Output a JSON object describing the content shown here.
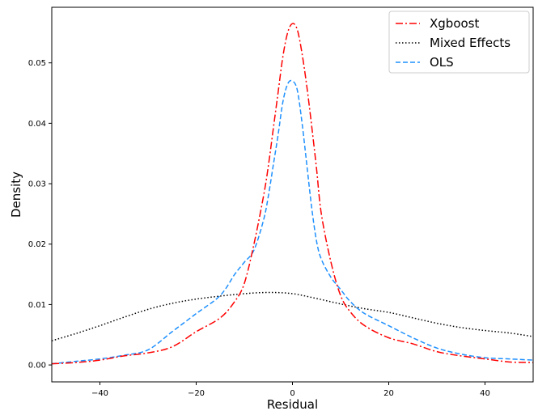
{
  "chart_data": {
    "type": "line",
    "title": "",
    "xlabel": "Residual",
    "ylabel": "Density",
    "xlim": [
      -50,
      50
    ],
    "ylim": [
      -0.0028,
      0.0592
    ],
    "x_ticks": [
      -40,
      -20,
      0,
      20,
      40
    ],
    "x_tick_labels": [
      "−40",
      "−20",
      "0",
      "20",
      "40"
    ],
    "y_ticks": [
      0.0,
      0.01,
      0.02,
      0.03,
      0.04,
      0.05
    ],
    "y_tick_labels": [
      "0.00",
      "0.01",
      "0.02",
      "0.03",
      "0.04",
      "0.05"
    ],
    "grid": false,
    "legend_position": "top-right",
    "series": [
      {
        "name": "Xgboost",
        "color": "#ff0000",
        "dash": "dashdot",
        "x": [
          -50,
          -45,
          -40,
          -35,
          -30,
          -25,
          -20,
          -15,
          -12,
          -10,
          -8,
          -6,
          -5,
          -4,
          -3,
          -2,
          -1,
          0,
          1,
          2,
          3,
          4,
          5,
          6,
          8,
          10,
          12,
          15,
          20,
          25,
          30,
          35,
          40,
          45,
          50
        ],
        "y": [
          0.0002,
          0.0004,
          0.0008,
          0.0015,
          0.002,
          0.003,
          0.0055,
          0.0078,
          0.0105,
          0.0135,
          0.02,
          0.028,
          0.033,
          0.039,
          0.045,
          0.051,
          0.055,
          0.0565,
          0.0555,
          0.0515,
          0.046,
          0.0395,
          0.0325,
          0.025,
          0.017,
          0.0115,
          0.0088,
          0.0065,
          0.0045,
          0.0035,
          0.0022,
          0.0015,
          0.001,
          0.0005,
          0.0004
        ]
      },
      {
        "name": "Mixed Effects",
        "color": "#000000",
        "dash": "dotted",
        "x": [
          -50,
          -45,
          -40,
          -35,
          -30,
          -25,
          -20,
          -15,
          -10,
          -5,
          0,
          5,
          10,
          15,
          20,
          25,
          30,
          35,
          40,
          45,
          50
        ],
        "y": [
          0.004,
          0.0052,
          0.0065,
          0.0079,
          0.0092,
          0.0102,
          0.0109,
          0.0114,
          0.0118,
          0.012,
          0.0118,
          0.011,
          0.0101,
          0.0093,
          0.0087,
          0.0078,
          0.0069,
          0.0062,
          0.0057,
          0.0053,
          0.0047
        ]
      },
      {
        "name": "OLS",
        "color": "#1e90ff",
        "dash": "dashed",
        "x": [
          -50,
          -45,
          -40,
          -35,
          -30,
          -25,
          -20,
          -15,
          -12,
          -10,
          -8,
          -6,
          -5,
          -4,
          -3,
          -2,
          -1,
          0,
          1,
          2,
          3,
          4,
          5,
          6,
          8,
          10,
          12,
          15,
          20,
          25,
          30,
          35,
          40,
          45,
          50
        ],
        "y": [
          0.0002,
          0.0006,
          0.001,
          0.0016,
          0.0025,
          0.0055,
          0.0085,
          0.0115,
          0.015,
          0.017,
          0.019,
          0.024,
          0.028,
          0.033,
          0.038,
          0.0435,
          0.0465,
          0.047,
          0.0455,
          0.04,
          0.033,
          0.026,
          0.0205,
          0.0175,
          0.0145,
          0.0125,
          0.0105,
          0.0085,
          0.0065,
          0.0045,
          0.0028,
          0.0018,
          0.0012,
          0.001,
          0.0008
        ]
      }
    ]
  }
}
